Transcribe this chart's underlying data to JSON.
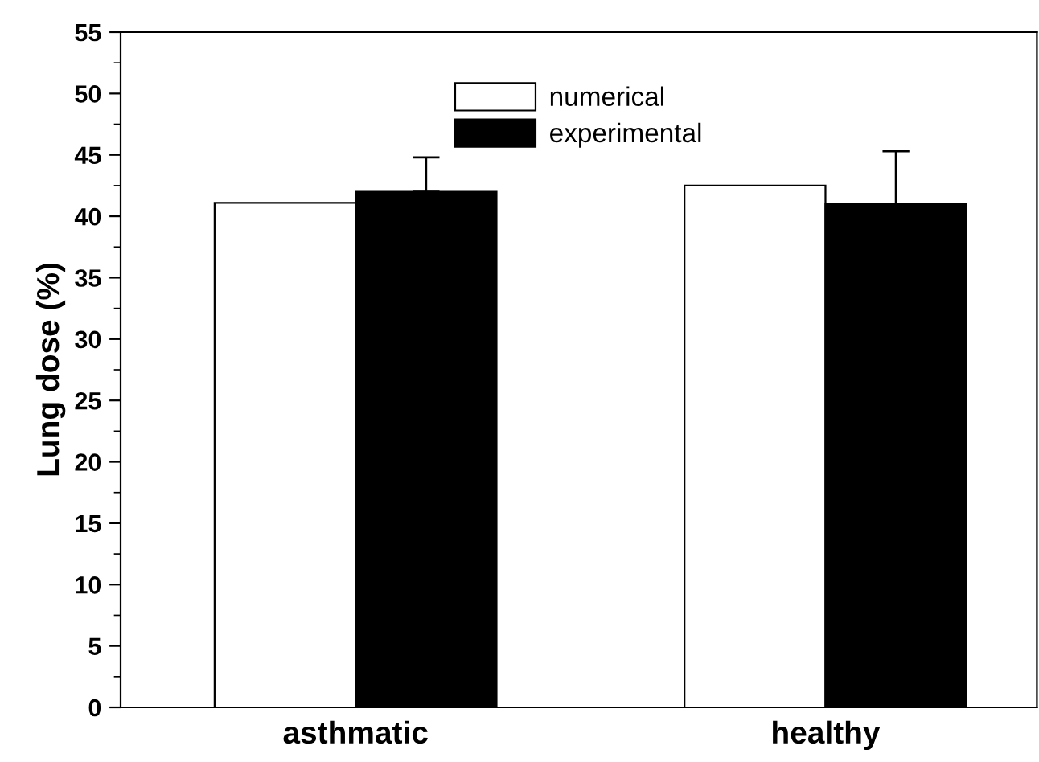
{
  "chart_data": {
    "type": "bar",
    "ylabel": "Lung dose (%)",
    "categories": [
      "asthmatic",
      "healthy"
    ],
    "series": [
      {
        "name": "numerical",
        "color": "#ffffff",
        "values": [
          41.1,
          42.5
        ]
      },
      {
        "name": "experimental",
        "color": "#000000",
        "values": [
          42.0,
          41.0
        ],
        "errors": [
          [
            42.0,
            44.8
          ],
          [
            41.0,
            45.3
          ]
        ]
      }
    ],
    "ylim": [
      0,
      55
    ],
    "yticks": [
      0,
      5,
      10,
      15,
      20,
      25,
      30,
      35,
      40,
      45,
      50,
      55
    ],
    "grid": false,
    "legend": "top"
  }
}
